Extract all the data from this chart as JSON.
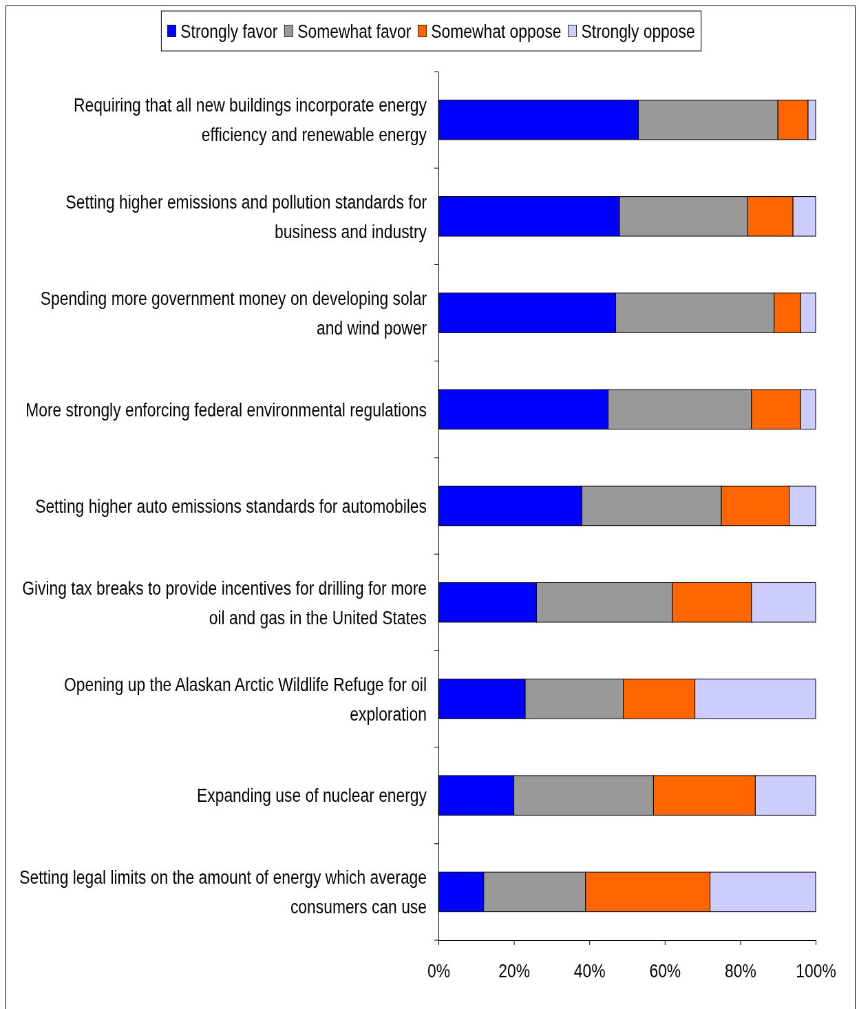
{
  "chart_data": {
    "type": "bar",
    "orientation": "horizontal",
    "stacked": true,
    "categories": [
      "Requiring that all new buildings incorporate energy efficiency and renewable energy",
      "Setting higher emissions and pollution standards for business and industry",
      "Spending more government money on developing solar and wind power",
      "More strongly enforcing federal environmental regulations",
      "Setting higher auto emissions standards for automobiles",
      "Giving tax breaks to provide incentives for drilling for more oil and gas in the United States",
      "Opening up the Alaskan Arctic Wildlife Refuge for oil exploration",
      "Expanding use of nuclear energy",
      "Setting legal limits on the amount of energy which average consumers can use"
    ],
    "series": [
      {
        "name": "Strongly favor",
        "color": "#0000ff",
        "values": [
          53,
          48,
          47,
          45,
          38,
          26,
          23,
          20,
          12
        ]
      },
      {
        "name": "Somewhat favor",
        "color": "#999999",
        "values": [
          37,
          34,
          42,
          38,
          37,
          36,
          26,
          37,
          27
        ]
      },
      {
        "name": "Somewhat oppose",
        "color": "#ff6600",
        "values": [
          8,
          12,
          7,
          13,
          18,
          21,
          19,
          27,
          33
        ]
      },
      {
        "name": "Strongly oppose",
        "color": "#ccccff",
        "values": [
          2,
          6,
          4,
          4,
          7,
          17,
          32,
          16,
          28
        ]
      }
    ],
    "xlim": [
      0,
      100
    ],
    "xticks": [
      {
        "value": 0,
        "label": "0%"
      },
      {
        "value": 20,
        "label": "20%"
      },
      {
        "value": 40,
        "label": "40%"
      },
      {
        "value": 60,
        "label": "60%"
      },
      {
        "value": 80,
        "label": "80%"
      },
      {
        "value": 100,
        "label": "100%"
      }
    ],
    "legend": "top"
  }
}
